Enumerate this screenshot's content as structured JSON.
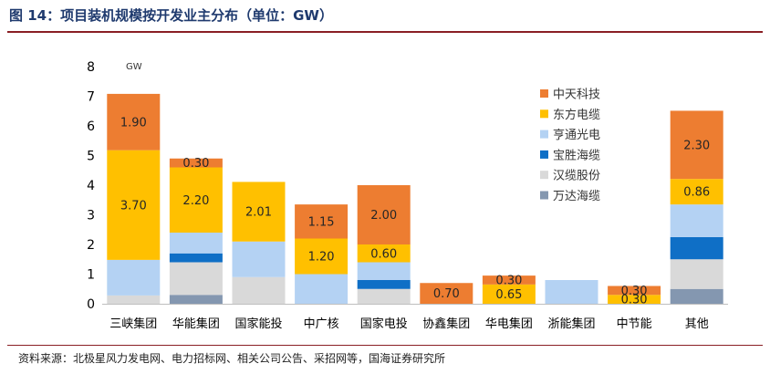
{
  "title": "图 14：项目装机规模按开发业主分布（单位：GW）",
  "source": "资料来源：北极星风力发电网、电力招标网、相关公司公告、采招网等，国海证券研究所",
  "chart_data": {
    "type": "bar",
    "stacked": true,
    "unit_label": "GW",
    "ylim": [
      0,
      8
    ],
    "yticks": [
      0,
      1,
      2,
      3,
      4,
      5,
      6,
      7,
      8
    ],
    "grid": false,
    "legend_position": "right",
    "categories": [
      "三峡集团",
      "华能集团",
      "国家能投",
      "中广核",
      "国家电投",
      "协鑫集团",
      "华电集团",
      "浙能集团",
      "中节能",
      "其他"
    ],
    "series": [
      {
        "name": "万达海缆",
        "color": "#8497b0",
        "values": [
          0.0,
          0.3,
          0.0,
          0.0,
          0.0,
          0.0,
          0.0,
          0.0,
          0.0,
          0.5
        ]
      },
      {
        "name": "汉缆股份",
        "color": "#d9d9d9",
        "values": [
          0.28,
          1.1,
          0.9,
          0.0,
          0.5,
          0.0,
          0.0,
          0.0,
          0.0,
          1.0
        ]
      },
      {
        "name": "宝胜海缆",
        "color": "#0f6fc6",
        "values": [
          0.0,
          0.3,
          0.0,
          0.0,
          0.3,
          0.0,
          0.0,
          0.0,
          0.0,
          0.75
        ]
      },
      {
        "name": "亨通光电",
        "color": "#b4d2f3",
        "values": [
          1.2,
          0.7,
          1.2,
          1.0,
          0.6,
          0.0,
          0.0,
          0.8,
          0.0,
          1.1
        ]
      },
      {
        "name": "东方电缆",
        "color": "#ffc000",
        "values": [
          3.7,
          2.2,
          2.01,
          1.2,
          0.6,
          0.0,
          0.65,
          0.0,
          0.3,
          0.86
        ]
      },
      {
        "name": "中天科技",
        "color": "#ed7d31",
        "values": [
          1.9,
          0.3,
          0.0,
          1.15,
          2.0,
          0.7,
          0.3,
          0.0,
          0.3,
          2.3
        ]
      }
    ],
    "data_labels": [
      {
        "category": "三峡集团",
        "series": "中天科技",
        "text": "1.90"
      },
      {
        "category": "三峡集团",
        "series": "东方电缆",
        "text": "3.70"
      },
      {
        "category": "华能集团",
        "series": "中天科技",
        "text": "0.30"
      },
      {
        "category": "华能集团",
        "series": "东方电缆",
        "text": "2.20"
      },
      {
        "category": "国家能投",
        "series": "东方电缆",
        "text": "2.01"
      },
      {
        "category": "中广核",
        "series": "中天科技",
        "text": "1.15"
      },
      {
        "category": "中广核",
        "series": "东方电缆",
        "text": "1.20"
      },
      {
        "category": "国家电投",
        "series": "中天科技",
        "text": "2.00"
      },
      {
        "category": "国家电投",
        "series": "东方电缆",
        "text": "0.60"
      },
      {
        "category": "协鑫集团",
        "series": "中天科技",
        "text": "0.70"
      },
      {
        "category": "华电集团",
        "series": "中天科技",
        "text": "0.30"
      },
      {
        "category": "华电集团",
        "series": "东方电缆",
        "text": "0.65"
      },
      {
        "category": "中节能",
        "series": "中天科技",
        "text": "0.30"
      },
      {
        "category": "中节能",
        "series": "东方电缆",
        "text": "0.30"
      },
      {
        "category": "其他",
        "series": "中天科技",
        "text": "2.30"
      },
      {
        "category": "其他",
        "series": "东方电缆",
        "text": "0.86"
      }
    ],
    "legend_order": [
      "中天科技",
      "东方电缆",
      "亨通光电",
      "宝胜海缆",
      "汉缆股份",
      "万达海缆"
    ]
  }
}
